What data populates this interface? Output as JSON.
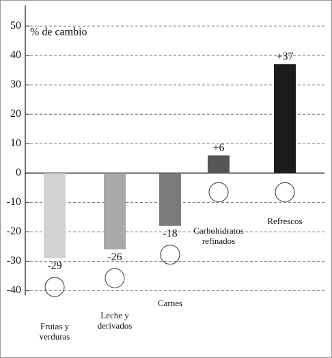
{
  "chart_data": {
    "type": "bar",
    "y_label": "% de cambio",
    "categories": [
      "Frutas y verduras",
      "Leche y derivados",
      "Carnes",
      "Carbohidratos refinados",
      "Refrescos"
    ],
    "values": [
      -29,
      -26,
      -18,
      6,
      37
    ],
    "value_labels": [
      "-29",
      "-26",
      "-18",
      "+6",
      "+37"
    ],
    "colors": [
      "#d2d2d2",
      "#a9a9a9",
      "#7b7b7b",
      "#555555",
      "#1c1c1c"
    ],
    "ylim": [
      -42,
      57
    ],
    "yticks": [
      -40,
      -30,
      -20,
      -10,
      0,
      10,
      20,
      30,
      40,
      50
    ],
    "grid": true
  }
}
